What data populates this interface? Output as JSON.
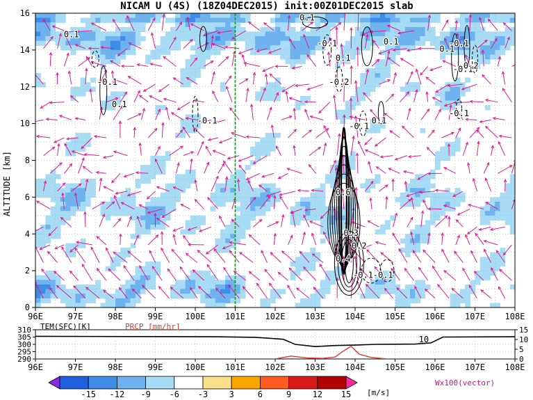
{
  "title": "NICAM U (4S) (18Z04DEC2015) init:00Z01DEC2015 slab",
  "chart_data": [
    {
      "type": "heatmap",
      "name": "main-section",
      "ylabel": "ALTITUDE [km]",
      "xlim": [
        96,
        108
      ],
      "ylim": [
        0,
        16
      ],
      "x_ticks": [
        "96E",
        "97E",
        "98E",
        "99E",
        "100E",
        "101E",
        "102E",
        "103E",
        "104E",
        "105E",
        "106E",
        "107E",
        "108E"
      ],
      "y_ticks": [
        "0",
        "2",
        "4",
        "6",
        "8",
        "10",
        "12",
        "14",
        "16"
      ],
      "reference_line_x": 101,
      "reference_line_color": "#1a9a1a",
      "fill_legend": {
        "levels": [
          "-15",
          "-12",
          "-9",
          "-6",
          "-3",
          "3",
          "6",
          "9",
          "12",
          "15"
        ],
        "colors": [
          "#8a2be2",
          "#1f5fe0",
          "#3f8ce8",
          "#6fb2f0",
          "#a8dcf4",
          "#ffffff",
          "#f8e08a",
          "#ffa500",
          "#ff5a1f",
          "#d91a1a",
          "#b00000",
          "#ff2aa0"
        ],
        "unit": "[m/s]"
      },
      "contour_labels": [
        {
          "text": "0.1",
          "x": 102.8,
          "y": 15.6
        },
        {
          "text": "0.1",
          "x": 96.9,
          "y": 14.7
        },
        {
          "text": "-0.1",
          "x": 103.3,
          "y": 14.2
        },
        {
          "text": "0.1",
          "x": 104.9,
          "y": 14.3
        },
        {
          "text": "-0.1",
          "x": 106.6,
          "y": 14.2
        },
        {
          "text": "0.1",
          "x": 106.3,
          "y": 13.9
        },
        {
          "text": "0.1",
          "x": 103.7,
          "y": 13.4
        },
        {
          "text": "-0.1",
          "x": 106.7,
          "y": 12.8
        },
        {
          "text": "0.2",
          "x": 106.9,
          "y": 13.0
        },
        {
          "text": "-0.1",
          "x": 97.8,
          "y": 12.1
        },
        {
          "text": "-0.2",
          "x": 103.6,
          "y": 12.1
        },
        {
          "text": "0.1",
          "x": 98.1,
          "y": 10.9
        },
        {
          "text": "-0.1",
          "x": 106.6,
          "y": 10.4
        },
        {
          "text": "-0.1",
          "x": 104.1,
          "y": 9.7
        },
        {
          "text": "0.1",
          "x": 104.6,
          "y": 10.0
        },
        {
          "text": "-0.1",
          "x": 100.3,
          "y": 10.0
        },
        {
          "text": "-0.1",
          "x": 97.8,
          "y": 12.1
        },
        {
          "text": "0.6",
          "x": 103.7,
          "y": 6.1
        },
        {
          "text": "0.3",
          "x": 103.9,
          "y": 3.9
        },
        {
          "text": "0.2",
          "x": 104.1,
          "y": 3.2
        },
        {
          "text": "0.4",
          "x": 103.7,
          "y": 2.5
        },
        {
          "text": "-0.1",
          "x": 104.2,
          "y": 1.6
        },
        {
          "text": "-0.1",
          "x": 104.7,
          "y": 1.6
        }
      ],
      "vector_label": "Wx100(vector)"
    },
    {
      "type": "line",
      "name": "surface-panel",
      "xlim": [
        96,
        108
      ],
      "series": [
        {
          "name": "TEM(SFC)[K]",
          "color": "#000000",
          "axis": "left",
          "ylim": [
            290,
            310
          ],
          "y_ticks": [
            "290",
            "295",
            "300",
            "305",
            "310"
          ],
          "x": [
            96,
            100.5,
            101.5,
            102.2,
            102.5,
            103.0,
            103.5,
            104.0,
            104.5,
            105.0,
            105.5,
            105.9,
            106.2,
            108
          ],
          "values": [
            305.5,
            305.2,
            304.8,
            303.5,
            300.0,
            298.5,
            299.2,
            299.5,
            300.0,
            300.1,
            300.2,
            301.0,
            305.0,
            305.2
          ]
        },
        {
          "name": "PRCP [mm/hr]",
          "color": "#e03a2a",
          "axis": "right",
          "ylim": [
            0,
            15
          ],
          "y_ticks": [
            "0",
            "5",
            "10",
            "15"
          ],
          "x": [
            96,
            102.0,
            102.4,
            102.8,
            103.2,
            103.5,
            103.7,
            103.9,
            104.1,
            104.4,
            104.8,
            108
          ],
          "values": [
            0,
            0,
            1.5,
            0.5,
            0.3,
            1.0,
            4.0,
            6.5,
            2.5,
            0.8,
            0,
            0
          ]
        }
      ],
      "annotation": {
        "text": "10",
        "x": 105.95,
        "y": 10
      }
    }
  ]
}
